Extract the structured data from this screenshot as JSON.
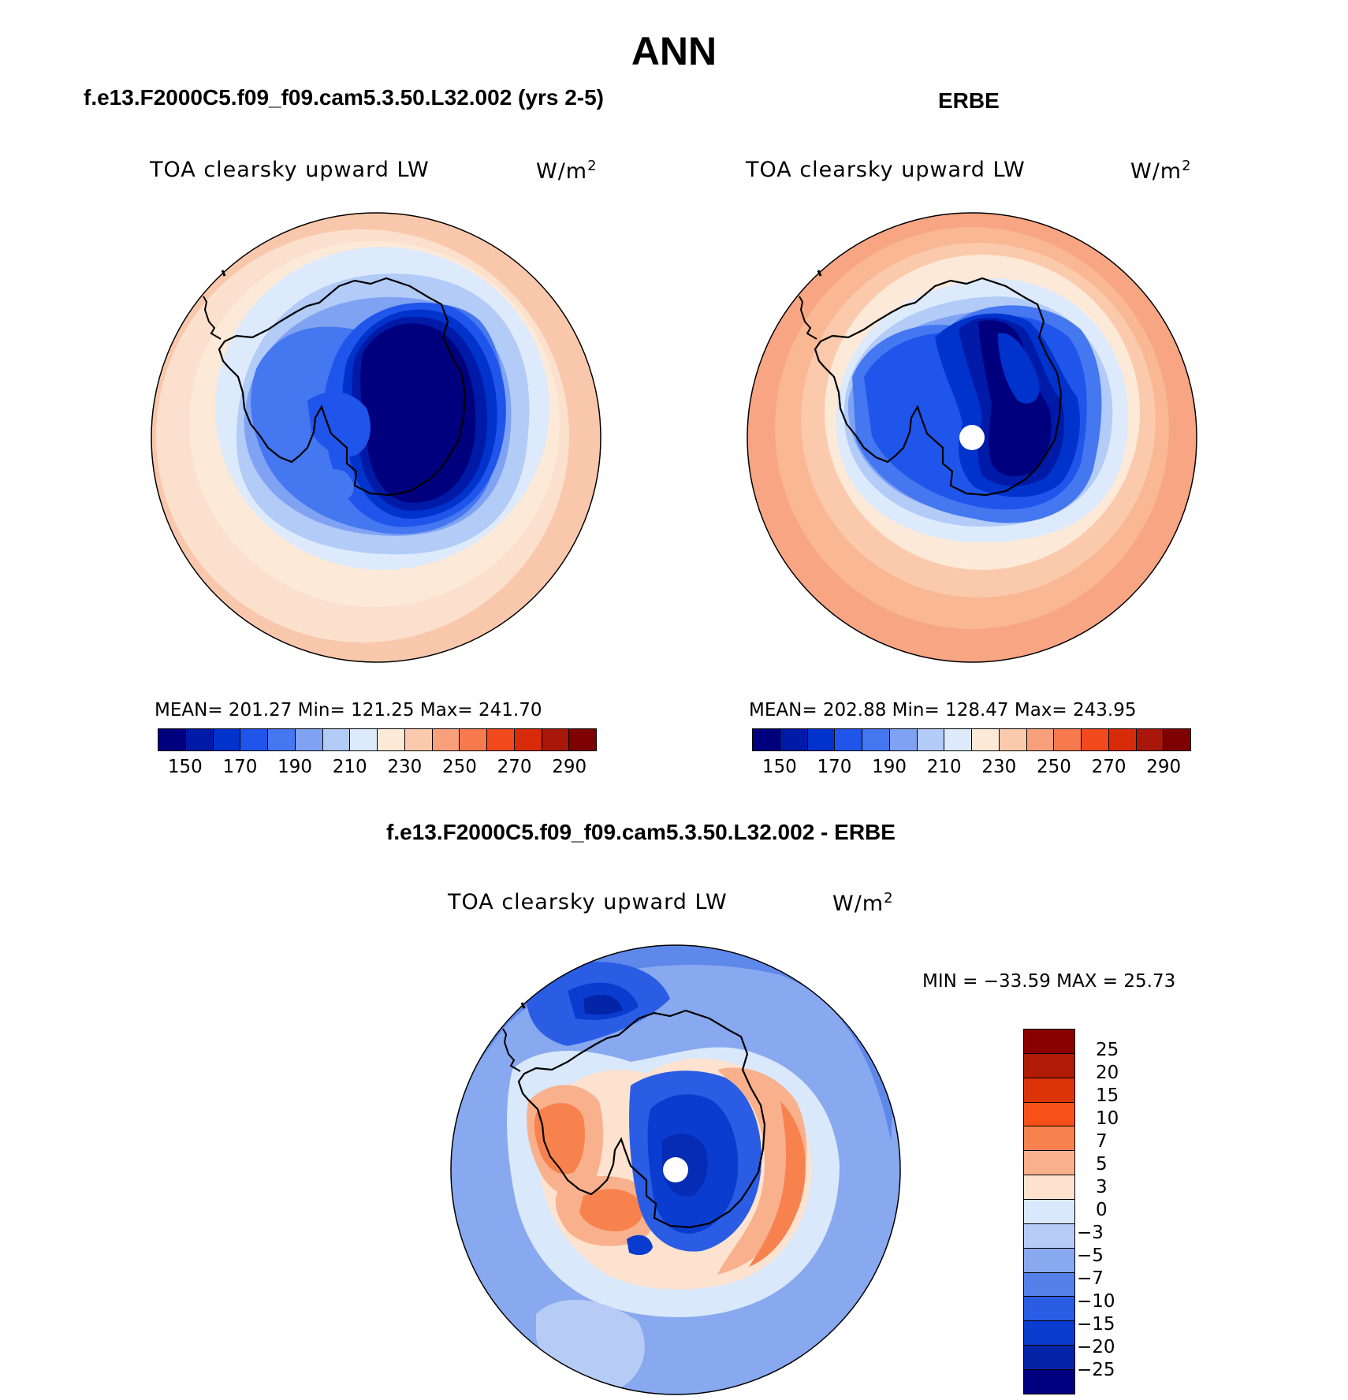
{
  "page": {
    "title": "ANN",
    "panel_left_title": "f.e13.F2000C5.f09_f09.cam5.3.50.L32.002 (yrs 2-5)",
    "panel_right_title": "ERBE",
    "panel_diff_title": "f.e13.F2000C5.f09_f09.cam5.3.50.L32.002 - ERBE"
  },
  "panels": {
    "left": {
      "variable": "TOA clearsky upward LW",
      "units": "W/m²",
      "stats": "MEAN= 201.27   Min= 121.25   Max= 241.70",
      "pole_mask": false
    },
    "right": {
      "variable": "TOA clearsky upward LW",
      "units": "W/m²",
      "stats": "MEAN= 202.88   Min= 128.47   Max= 243.95",
      "pole_mask": true
    },
    "diff": {
      "variable": "TOA clearsky upward LW",
      "units": "W/m²",
      "stats": "MIN = −33.59 MAX =  25.73",
      "pole_mask": true
    }
  },
  "colorbar_abs": {
    "colors": [
      "#00007f",
      "#001aa8",
      "#0033cc",
      "#1f55ea",
      "#4477f0",
      "#7fa2f3",
      "#b2cbf7",
      "#dceafc",
      "#fde9d7",
      "#fbc9ac",
      "#f8a07c",
      "#f77a4e",
      "#f24a1d",
      "#d72b0a",
      "#a8170a",
      "#7f0000"
    ],
    "tick_labels": [
      "150",
      "170",
      "190",
      "210",
      "230",
      "250",
      "270",
      "290"
    ]
  },
  "colorbar_diff": {
    "colors": [
      "#8b0000",
      "#b01a06",
      "#dd3309",
      "#f75019",
      "#f8824e",
      "#f9b08d",
      "#fde2d0",
      "#d9e8fb",
      "#b6ccf5",
      "#88a8ef",
      "#5580ea",
      "#2a5de4",
      "#0a3ccf",
      "#0424a8",
      "#000080"
    ],
    "tick_labels": [
      "25",
      "20",
      "15",
      "10",
      "7",
      "5",
      "3",
      "0",
      "−3",
      "−5",
      "−7",
      "−10",
      "−15",
      "−20",
      "−25"
    ]
  }
}
